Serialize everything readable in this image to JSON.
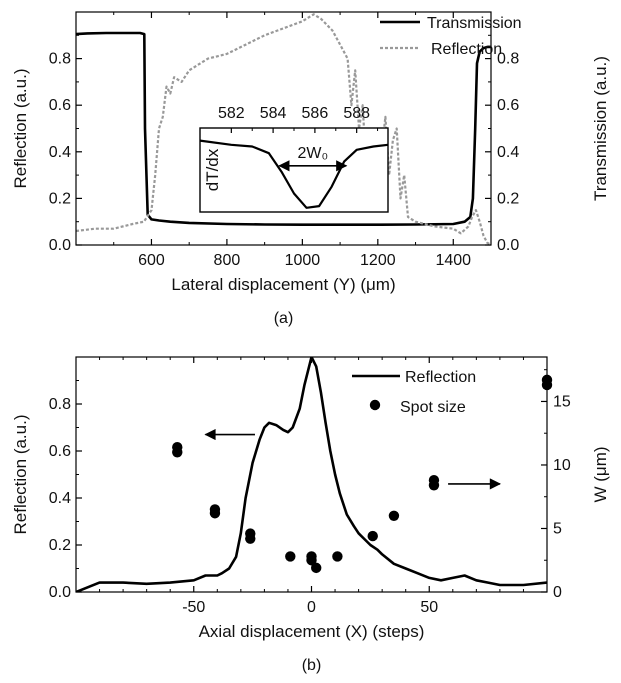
{
  "chart_data": [
    {
      "type": "line",
      "panel_label": "(a)",
      "xlabel": "Lateral displacement (Y) (μm)",
      "ylabel_left": "Reflection (a.u.)",
      "ylabel_right": "Transmission (a.u.)",
      "xlim": [
        400,
        1500
      ],
      "ylim_left": [
        0,
        1.0
      ],
      "ylim_right": [
        0,
        1.0
      ],
      "x_ticks": [
        600,
        800,
        1000,
        1200,
        1400
      ],
      "y_ticks_left": [
        0.0,
        0.2,
        0.4,
        0.6,
        0.8
      ],
      "y_ticks_right": [
        0.0,
        0.2,
        0.4,
        0.6,
        0.8
      ],
      "legend": {
        "placement": "top-right",
        "entries": [
          "Transmission",
          "Reflection"
        ]
      },
      "series": [
        {
          "name": "Transmission",
          "style": "solid",
          "color": "#000000",
          "x": [
            400,
            430,
            480,
            530,
            570,
            581,
            583,
            590,
            600,
            620,
            650,
            700,
            800,
            900,
            1000,
            1100,
            1200,
            1300,
            1400,
            1430,
            1445,
            1452,
            1458,
            1463,
            1470,
            1480,
            1490,
            1500
          ],
          "y": [
            0.905,
            0.908,
            0.91,
            0.91,
            0.91,
            0.905,
            0.5,
            0.13,
            0.11,
            0.105,
            0.1,
            0.095,
            0.09,
            0.088,
            0.087,
            0.087,
            0.087,
            0.088,
            0.09,
            0.1,
            0.12,
            0.2,
            0.5,
            0.78,
            0.83,
            0.845,
            0.85,
            0.85
          ]
        },
        {
          "name": "Reflection",
          "style": "dashed",
          "color": "#999999",
          "x": [
            400,
            450,
            500,
            550,
            580,
            600,
            610,
            620,
            630,
            640,
            650,
            660,
            680,
            700,
            750,
            800,
            850,
            900,
            950,
            1000,
            1030,
            1050,
            1080,
            1100,
            1120,
            1130,
            1140,
            1150,
            1160,
            1170,
            1180,
            1190,
            1200,
            1210,
            1220,
            1230,
            1240,
            1250,
            1260,
            1270,
            1280,
            1300,
            1350,
            1400,
            1420,
            1440,
            1450,
            1460,
            1470,
            1480,
            1490,
            1500
          ],
          "y": [
            0.06,
            0.07,
            0.07,
            0.09,
            0.1,
            0.15,
            0.3,
            0.5,
            0.55,
            0.68,
            0.65,
            0.72,
            0.7,
            0.75,
            0.8,
            0.82,
            0.86,
            0.9,
            0.93,
            0.96,
            0.99,
            0.97,
            0.92,
            0.86,
            0.8,
            0.6,
            0.75,
            0.5,
            0.6,
            0.3,
            0.45,
            0.2,
            0.5,
            0.4,
            0.55,
            0.3,
            0.45,
            0.5,
            0.2,
            0.3,
            0.12,
            0.1,
            0.08,
            0.07,
            0.05,
            0.08,
            0.12,
            0.15,
            0.1,
            0.04,
            0.01,
            0.0
          ]
        }
      ],
      "inset": {
        "ylabel": "dT/dx",
        "x_tick_labels": [
          "582",
          "584",
          "586",
          "588"
        ],
        "xlim": [
          580.5,
          589.5
        ],
        "ylim": [
          0,
          1
        ],
        "annotation": "2W₀",
        "annotation_arrow_x": [
          584.3,
          587.5
        ],
        "annotation_arrow_y": 0.55,
        "x": [
          580.5,
          582,
          583,
          583.8,
          584.4,
          585,
          585.6,
          586.2,
          586.8,
          587.4,
          588,
          588.8,
          589.5
        ],
        "y": [
          0.85,
          0.8,
          0.78,
          0.7,
          0.48,
          0.22,
          0.05,
          0.07,
          0.3,
          0.6,
          0.74,
          0.78,
          0.8
        ]
      }
    },
    {
      "type": "line",
      "panel_label": "(b)",
      "xlabel": "Axial displacement (X)  (steps)",
      "ylabel_left": "Reflection (a.u.)",
      "ylabel_right": "W (μm)",
      "xlim": [
        -100,
        100
      ],
      "ylim_left": [
        0,
        1.0
      ],
      "ylim_right": [
        0,
        18.5
      ],
      "x_ticks": [
        -50,
        0,
        50
      ],
      "x_tick_labels": [
        "-50",
        "0",
        "50"
      ],
      "x_minor_ticks": [
        -90,
        -80,
        -70,
        -60,
        -40,
        -30,
        -20,
        -10,
        10,
        20,
        30,
        40,
        60,
        70,
        80,
        90
      ],
      "y_ticks_left": [
        0.0,
        0.2,
        0.4,
        0.6,
        0.8
      ],
      "y_ticks_right": [
        0,
        5,
        10,
        15
      ],
      "legend": {
        "placement": "top-right",
        "entries": [
          "Reflection",
          "Spot size"
        ]
      },
      "series": [
        {
          "name": "Reflection",
          "style": "solid",
          "color": "#000000",
          "x": [
            -100,
            -90,
            -80,
            -70,
            -60,
            -50,
            -45,
            -40,
            -38,
            -35,
            -32,
            -30,
            -28,
            -25,
            -22,
            -20,
            -18,
            -15,
            -12,
            -10,
            -8,
            -5,
            -3,
            0,
            2,
            4,
            6,
            8,
            10,
            12,
            15,
            18,
            20,
            22,
            25,
            28,
            30,
            35,
            40,
            45,
            50,
            55,
            60,
            65,
            70,
            75,
            80,
            90,
            100
          ],
          "y": [
            0.0,
            0.04,
            0.04,
            0.035,
            0.04,
            0.05,
            0.07,
            0.07,
            0.08,
            0.1,
            0.15,
            0.25,
            0.4,
            0.55,
            0.65,
            0.7,
            0.72,
            0.71,
            0.69,
            0.68,
            0.7,
            0.78,
            0.88,
            1.0,
            0.96,
            0.85,
            0.72,
            0.6,
            0.5,
            0.42,
            0.33,
            0.28,
            0.25,
            0.23,
            0.2,
            0.18,
            0.16,
            0.12,
            0.1,
            0.08,
            0.06,
            0.05,
            0.06,
            0.07,
            0.05,
            0.04,
            0.03,
            0.03,
            0.04
          ]
        },
        {
          "name": "Spot size",
          "style": "markers",
          "color": "#000000",
          "axis": "right",
          "x": [
            -57,
            -57,
            -41,
            -41,
            -26,
            -26,
            -9,
            0,
            0,
            2,
            11,
            26,
            35,
            52,
            52,
            100,
            100
          ],
          "y": [
            11.0,
            11.4,
            6.2,
            6.5,
            4.2,
            4.6,
            2.8,
            2.5,
            2.8,
            1.9,
            2.8,
            4.4,
            6.0,
            8.4,
            8.8,
            16.3,
            16.7
          ]
        }
      ],
      "annotations": [
        {
          "type": "arrow",
          "direction": "left",
          "x": [
            -24,
            -45
          ],
          "y": 0.67
        },
        {
          "type": "arrow",
          "direction": "right",
          "x": [
            58,
            80
          ],
          "y": 0.46
        }
      ]
    }
  ]
}
